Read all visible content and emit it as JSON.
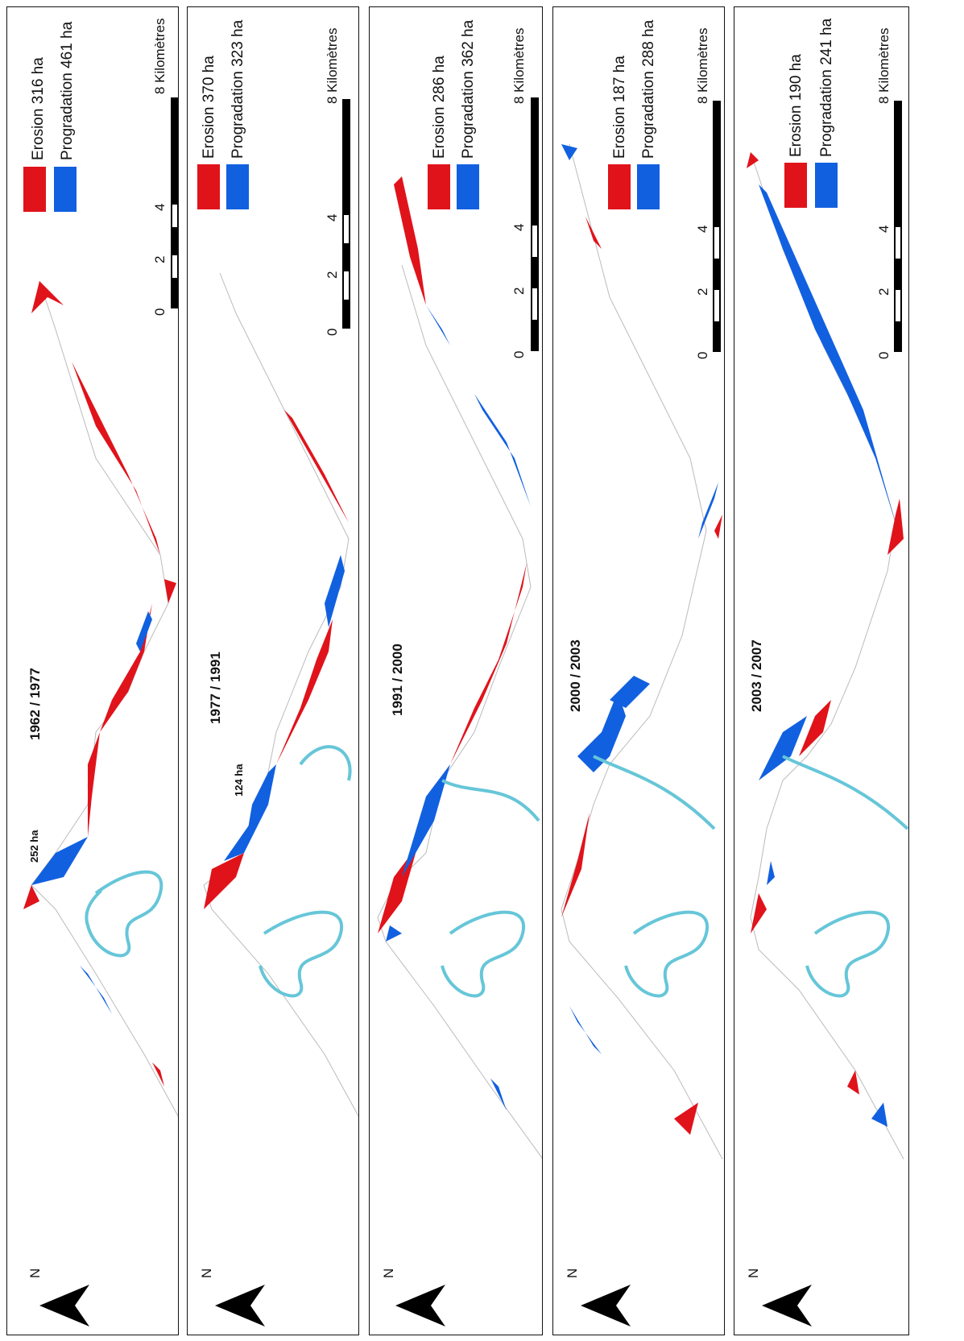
{
  "legend_colors": {
    "erosion": "#e0131b",
    "progradation": "#1160e0",
    "river": "#66c6d8"
  },
  "panels": [
    {
      "period": "1962 / 1977",
      "erosion_label": "Erosion 316 ha",
      "progradation_label": "Progradation 461 ha",
      "area_note": "252 ha"
    },
    {
      "period": "1977 / 1991",
      "erosion_label": "Erosion 370 ha",
      "progradation_label": "Progradation 323 ha",
      "area_note": "124 ha"
    },
    {
      "period": "1991 / 2000",
      "erosion_label": "Erosion 286 ha",
      "progradation_label": "Progradation 362 ha",
      "area_note": ""
    },
    {
      "period": "2000 / 2003",
      "erosion_label": "Erosion 187 ha",
      "progradation_label": "Progradation 288 ha",
      "area_note": ""
    },
    {
      "period": "2003 / 2007",
      "erosion_label": "Erosion 190 ha",
      "progradation_label": "Progradation 241 ha",
      "area_note": ""
    }
  ],
  "scale": {
    "ticks": [
      "0",
      "2",
      "4"
    ],
    "end_label": "8 Kilomètres"
  },
  "north_arrow": {
    "label": "N",
    "icon": "north-arrow-icon"
  }
}
